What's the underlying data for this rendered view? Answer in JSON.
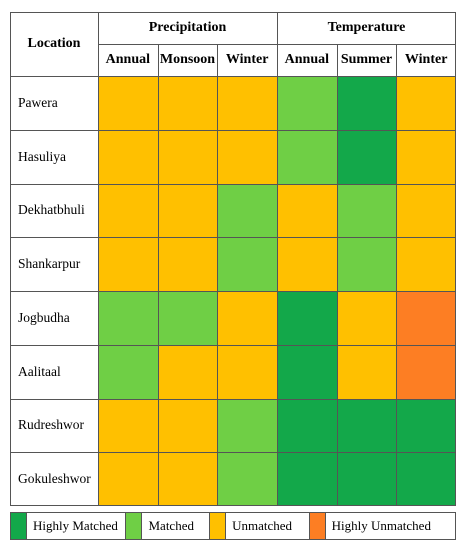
{
  "chart_data": {
    "type": "heatmap",
    "corner_label": "Location",
    "groups": [
      {
        "label": "Precipitation",
        "columns": [
          "Annual",
          "Monsoon",
          "Winter"
        ]
      },
      {
        "label": "Temperature",
        "columns": [
          "Annual",
          "Summer",
          "Winter"
        ]
      }
    ],
    "rows": [
      {
        "label": "Pawera",
        "values": [
          "Unmatched",
          "Unmatched",
          "Unmatched",
          "Matched",
          "Highly Matched",
          "Unmatched"
        ]
      },
      {
        "label": "Hasuliya",
        "values": [
          "Unmatched",
          "Unmatched",
          "Unmatched",
          "Matched",
          "Highly Matched",
          "Unmatched"
        ]
      },
      {
        "label": "Dekhatbhuli",
        "values": [
          "Unmatched",
          "Unmatched",
          "Matched",
          "Unmatched",
          "Matched",
          "Unmatched"
        ]
      },
      {
        "label": "Shankarpur",
        "values": [
          "Unmatched",
          "Unmatched",
          "Matched",
          "Unmatched",
          "Matched",
          "Unmatched"
        ]
      },
      {
        "label": "Jogbudha",
        "values": [
          "Matched",
          "Matched",
          "Unmatched",
          "Highly Matched",
          "Unmatched",
          "Highly Unmatched"
        ]
      },
      {
        "label": "Aalitaal",
        "values": [
          "Matched",
          "Unmatched",
          "Unmatched",
          "Highly Matched",
          "Unmatched",
          "Highly Unmatched"
        ]
      },
      {
        "label": "Rudreshwor",
        "values": [
          "Unmatched",
          "Unmatched",
          "Matched",
          "Highly Matched",
          "Highly Matched",
          "Highly Matched"
        ]
      },
      {
        "label": "Gokuleshwor",
        "values": [
          "Unmatched",
          "Unmatched",
          "Matched",
          "Highly Matched",
          "Highly Matched",
          "Highly Matched"
        ]
      }
    ],
    "legend": [
      {
        "label": "Highly Matched",
        "color": "#13a84a"
      },
      {
        "label": "Matched",
        "color": "#6fcf45"
      },
      {
        "label": "Unmatched",
        "color": "#ffc000"
      },
      {
        "label": "Highly Unmatched",
        "color": "#fd7e23"
      }
    ]
  }
}
